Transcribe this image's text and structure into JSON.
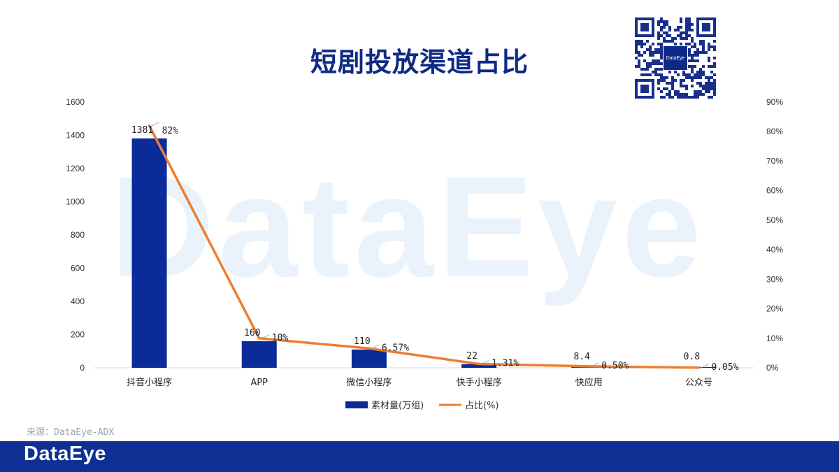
{
  "title": "短剧投放渠道占比",
  "watermark": "DataEye",
  "qr_badge": "DataEye",
  "source": "来源：DataEye-ADX",
  "footer_logo": "DataEye",
  "colors": {
    "bar": "#0a2b99",
    "line": "#ee7d31",
    "footer": "#0f2f95",
    "title": "#0e2a86"
  },
  "chart_data": {
    "type": "bar+line",
    "categories": [
      "抖音小程序",
      "APP",
      "微信小程序",
      "快手小程序",
      "快应用",
      "公众号"
    ],
    "series": [
      {
        "name": "素材量(万组)",
        "type": "bar",
        "axis": "left",
        "values": [
          1381,
          160,
          110,
          22,
          8.4,
          0.8
        ],
        "labels": [
          "1381",
          "160",
          "110",
          "22",
          "8.4",
          "0.8"
        ]
      },
      {
        "name": "占比(%)",
        "type": "line",
        "axis": "right",
        "values": [
          82,
          10,
          6.57,
          1.31,
          0.5,
          0.05
        ],
        "labels": [
          "82%",
          "10%",
          "6.57%",
          "1.31%",
          "0.50%",
          "0.05%"
        ]
      }
    ],
    "left_axis": {
      "ylim": [
        0,
        1600
      ],
      "ticks": [
        "0",
        "200",
        "400",
        "600",
        "800",
        "1000",
        "1200",
        "1400",
        "1600"
      ]
    },
    "right_axis": {
      "ylim": [
        0,
        90
      ],
      "ticks": [
        "0%",
        "10%",
        "20%",
        "30%",
        "40%",
        "50%",
        "60%",
        "70%",
        "80%",
        "90%"
      ]
    },
    "grid": false,
    "legend": "bottom"
  }
}
